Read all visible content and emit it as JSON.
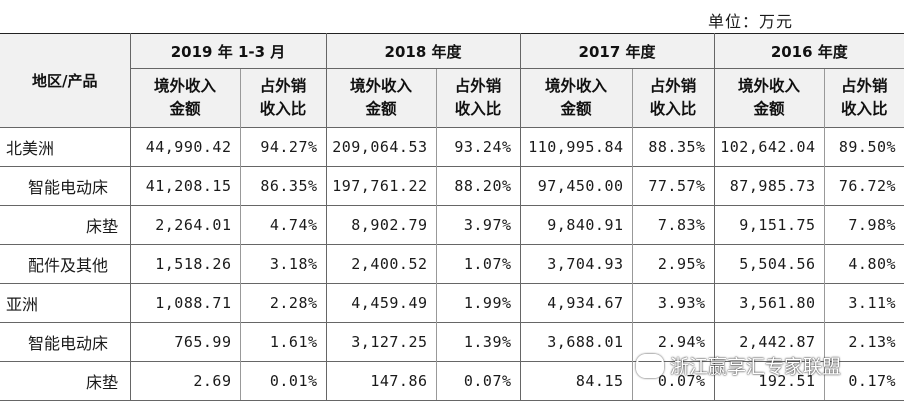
{
  "unit_label": "单位：万元",
  "header": {
    "corner": "地区/产品",
    "periods": [
      "2019 年 1-3 月",
      "2018 年度",
      "2017 年度",
      "2016 年度"
    ],
    "sub_amount": [
      "境外收入",
      "金额"
    ],
    "sub_ratio": [
      "占外销",
      "收入比"
    ]
  },
  "rows": [
    {
      "label": "北美洲",
      "level": 0,
      "cells": [
        "44,990.42",
        "94.27%",
        "209,064.53",
        "93.24%",
        "110,995.84",
        "88.35%",
        "102,642.04",
        "89.50%"
      ]
    },
    {
      "label": "智能电动床",
      "level": 1,
      "cells": [
        "41,208.15",
        "86.35%",
        "197,761.22",
        "88.20%",
        "97,450.00",
        "77.57%",
        "87,985.73",
        "76.72%"
      ]
    },
    {
      "label": "床垫",
      "level": 2,
      "cells": [
        "2,264.01",
        "4.74%",
        "8,902.79",
        "3.97%",
        "9,840.91",
        "7.83%",
        "9,151.75",
        "7.98%"
      ]
    },
    {
      "label": "配件及其他",
      "level": 1,
      "cells": [
        "1,518.26",
        "3.18%",
        "2,400.52",
        "1.07%",
        "3,704.93",
        "2.95%",
        "5,504.56",
        "4.80%"
      ]
    },
    {
      "label": "亚洲",
      "level": 0,
      "cells": [
        "1,088.71",
        "2.28%",
        "4,459.49",
        "1.99%",
        "4,934.67",
        "3.93%",
        "3,561.80",
        "3.11%"
      ]
    },
    {
      "label": "智能电动床",
      "level": 1,
      "cells": [
        "765.99",
        "1.61%",
        "3,127.25",
        "1.39%",
        "3,688.01",
        "2.94%",
        "2,442.87",
        "2.13%"
      ]
    },
    {
      "label": "床垫",
      "level": 2,
      "cells": [
        "2.69",
        "0.01%",
        "147.86",
        "0.07%",
        "84.15",
        "0.07%",
        "192.51",
        "0.17%"
      ]
    }
  ],
  "watermark": {
    "text": "浙江赢享汇专家联盟",
    "icon": "wechat-icon"
  }
}
